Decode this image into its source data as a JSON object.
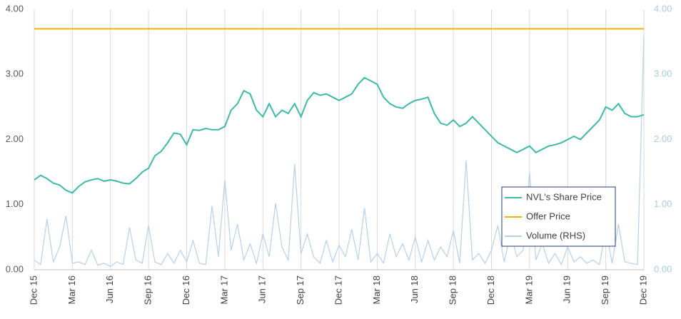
{
  "chart_data": {
    "type": "line",
    "xlim": [
      0,
      48
    ],
    "xticks": [
      {
        "value": 0,
        "label": "Dec 15"
      },
      {
        "value": 3,
        "label": "Mar 16"
      },
      {
        "value": 6,
        "label": "Jun 16"
      },
      {
        "value": 9,
        "label": "Sep 16"
      },
      {
        "value": 12,
        "label": "Dec 16"
      },
      {
        "value": 15,
        "label": "Mar 17"
      },
      {
        "value": 18,
        "label": "Jun 17"
      },
      {
        "value": 21,
        "label": "Sep 17"
      },
      {
        "value": 24,
        "label": "Dec 17"
      },
      {
        "value": 27,
        "label": "Mar 18"
      },
      {
        "value": 30,
        "label": "Jun 18"
      },
      {
        "value": 33,
        "label": "Sep 18"
      },
      {
        "value": 36,
        "label": "Dec 18"
      },
      {
        "value": 39,
        "label": "Mar 19"
      },
      {
        "value": 42,
        "label": "Jun 19"
      },
      {
        "value": 45,
        "label": "Sep 19"
      },
      {
        "value": 48,
        "label": "Dec 19"
      }
    ],
    "ylim": [
      0,
      4
    ],
    "yticks": [
      {
        "value": 0,
        "label": "0.00"
      },
      {
        "value": 1,
        "label": "1.00"
      },
      {
        "value": 2,
        "label": "2.00"
      },
      {
        "value": 3,
        "label": "3.00"
      },
      {
        "value": 4,
        "label": "4.00"
      }
    ],
    "y2lim": [
      0,
      4
    ],
    "y2ticks": [
      {
        "value": 0,
        "label": "0.00"
      },
      {
        "value": 1,
        "label": "1.00"
      },
      {
        "value": 2,
        "label": "2.00"
      },
      {
        "value": 3,
        "label": "3.00"
      },
      {
        "value": 4,
        "label": "4.00"
      }
    ],
    "grid": true,
    "series": [
      {
        "name": "NVL's Share Price",
        "color": "#3fb8a8",
        "x": [
          0,
          0.5,
          1,
          1.5,
          2,
          2.5,
          3,
          3.5,
          4,
          4.5,
          5,
          5.5,
          6,
          6.5,
          7,
          7.5,
          8,
          8.5,
          9,
          9.5,
          10,
          10.5,
          11,
          11.5,
          12,
          12.5,
          13,
          13.5,
          14,
          14.5,
          15,
          15.5,
          16,
          16.5,
          17,
          17.5,
          18,
          18.5,
          19,
          19.5,
          20,
          20.5,
          21,
          21.5,
          22,
          22.5,
          23,
          23.5,
          24,
          24.5,
          25,
          25.5,
          26,
          26.5,
          27,
          27.5,
          28,
          28.5,
          29,
          29.5,
          30,
          30.5,
          31,
          31.5,
          32,
          32.5,
          33,
          33.5,
          34,
          34.5,
          35,
          35.5,
          36,
          36.5,
          37,
          37.5,
          38,
          38.5,
          39,
          39.5,
          40,
          40.5,
          41,
          41.5,
          42,
          42.5,
          43,
          43.5,
          44,
          44.5,
          45,
          45.5,
          46,
          46.5,
          47,
          47.5,
          48
        ],
        "values": [
          1.38,
          1.45,
          1.4,
          1.33,
          1.3,
          1.22,
          1.18,
          1.28,
          1.35,
          1.38,
          1.4,
          1.36,
          1.38,
          1.36,
          1.33,
          1.32,
          1.4,
          1.5,
          1.56,
          1.75,
          1.82,
          1.95,
          2.1,
          2.08,
          1.92,
          2.15,
          2.14,
          2.17,
          2.15,
          2.15,
          2.2,
          2.45,
          2.55,
          2.75,
          2.7,
          2.45,
          2.35,
          2.55,
          2.35,
          2.45,
          2.4,
          2.55,
          2.35,
          2.6,
          2.72,
          2.68,
          2.7,
          2.65,
          2.6,
          2.65,
          2.7,
          2.85,
          2.95,
          2.9,
          2.85,
          2.65,
          2.55,
          2.5,
          2.48,
          2.55,
          2.6,
          2.62,
          2.65,
          2.4,
          2.25,
          2.22,
          2.3,
          2.2,
          2.25,
          2.35,
          2.25,
          2.15,
          2.05,
          1.95,
          1.9,
          1.85,
          1.8,
          1.85,
          1.9,
          1.8,
          1.85,
          1.9,
          1.92,
          1.95,
          2.0,
          2.05,
          2.0,
          2.1,
          2.2,
          2.3,
          2.5,
          2.45,
          2.55,
          2.4,
          2.35,
          2.35,
          2.38
        ]
      },
      {
        "name": "Offer Price",
        "color": "#f0b400",
        "x": [
          0,
          48
        ],
        "values": [
          3.7,
          3.7
        ]
      },
      {
        "name": "Volume (RHS)",
        "color": "#b7cfe8",
        "axis": "y2",
        "x": [
          0,
          0.5,
          1,
          1.5,
          2,
          2.5,
          3,
          3.5,
          4,
          4.5,
          5,
          5.5,
          6,
          6.5,
          7,
          7.5,
          8,
          8.5,
          9,
          9.5,
          10,
          10.5,
          11,
          11.5,
          12,
          12.5,
          13,
          13.5,
          14,
          14.5,
          15,
          15.5,
          16,
          16.5,
          17,
          17.5,
          18,
          18.5,
          19,
          19.5,
          20,
          20.5,
          21,
          21.5,
          22,
          22.5,
          23,
          23.5,
          24,
          24.5,
          25,
          25.5,
          26,
          26.5,
          27,
          27.5,
          28,
          28.5,
          29,
          29.5,
          30,
          30.5,
          31,
          31.5,
          32,
          32.5,
          33,
          33.5,
          34,
          34.5,
          35,
          35.5,
          36,
          36.5,
          37,
          37.5,
          38,
          38.5,
          39,
          39.5,
          40,
          40.5,
          41,
          41.5,
          42,
          42.5,
          43,
          43.5,
          44,
          44.5,
          45,
          45.5,
          46,
          46.5,
          47,
          47.5,
          48
        ],
        "values": [
          0.15,
          0.08,
          0.78,
          0.12,
          0.35,
          0.83,
          0.1,
          0.12,
          0.08,
          0.3,
          0.07,
          0.1,
          0.05,
          0.12,
          0.08,
          0.65,
          0.15,
          0.1,
          0.68,
          0.12,
          0.08,
          0.25,
          0.1,
          0.3,
          0.12,
          0.45,
          0.1,
          0.08,
          0.98,
          0.2,
          1.38,
          0.3,
          0.7,
          0.15,
          0.4,
          0.1,
          0.55,
          0.2,
          1.02,
          0.35,
          0.15,
          1.62,
          0.25,
          0.55,
          0.2,
          0.1,
          0.45,
          0.12,
          0.38,
          0.2,
          0.62,
          0.15,
          0.95,
          0.12,
          0.25,
          0.1,
          0.55,
          0.2,
          0.4,
          0.15,
          0.5,
          0.12,
          0.45,
          0.15,
          0.35,
          0.2,
          0.6,
          0.1,
          1.68,
          0.15,
          0.25,
          0.1,
          0.3,
          0.68,
          0.12,
          0.55,
          0.2,
          0.3,
          1.5,
          0.15,
          0.4,
          0.1,
          0.25,
          0.08,
          0.35,
          0.12,
          0.2,
          0.1,
          0.15,
          0.08,
          0.62,
          0.1,
          0.7,
          0.12,
          0.1,
          0.08,
          3.6
        ]
      }
    ],
    "legend": "lower-right"
  }
}
